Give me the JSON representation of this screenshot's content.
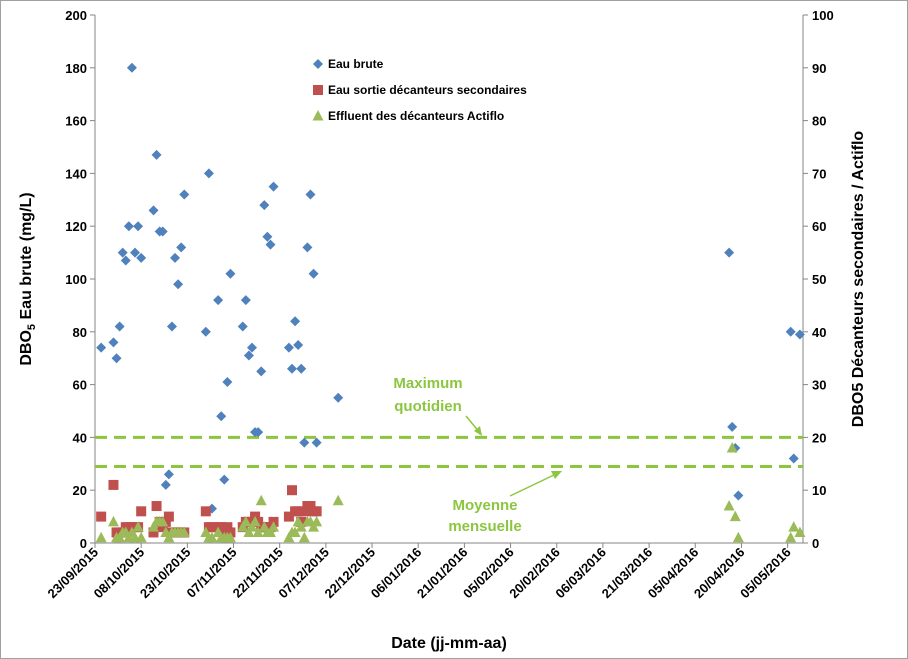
{
  "chart_data": {
    "type": "scatter",
    "title": "",
    "xlabel": "Date (jj-mm-aa)",
    "ylabel_left": [
      "DBO",
      "5",
      " Eau brute (mg/L)"
    ],
    "ylabel_right": "DBO5 Décanteurs secondaires / Actiflo",
    "x_range": [
      "2015-09-23",
      "2016-05-10"
    ],
    "x_tick_labels": [
      "23/09/2015",
      "08/10/2015",
      "23/10/2015",
      "07/11/2015",
      "22/11/2015",
      "07/12/2015",
      "22/12/2015",
      "06/01/2016",
      "21/01/2016",
      "05/02/2016",
      "20/02/2016",
      "06/03/2016",
      "21/03/2016",
      "05/04/2016",
      "20/04/2016",
      "05/05/2016"
    ],
    "x_tick_dates": [
      "2015-09-23",
      "2015-10-08",
      "2015-10-23",
      "2015-11-07",
      "2015-11-22",
      "2015-12-07",
      "2015-12-22",
      "2016-01-06",
      "2016-01-21",
      "2016-02-05",
      "2016-02-20",
      "2016-03-06",
      "2016-03-21",
      "2016-04-05",
      "2016-04-20",
      "2016-05-05"
    ],
    "y_left": {
      "min": 0,
      "max": 200,
      "ticks": [
        0,
        20,
        40,
        60,
        80,
        100,
        120,
        140,
        160,
        180,
        200
      ]
    },
    "y_right": {
      "min": 0,
      "max": 100,
      "ticks": [
        0,
        10,
        20,
        30,
        40,
        50,
        60,
        70,
        80,
        90,
        100
      ]
    },
    "legend_position": "top-center",
    "grid": false,
    "series": [
      {
        "name": "Eau brute",
        "axis": "left",
        "marker": "diamond",
        "color": "#4f81bd",
        "points": [
          [
            "2015-09-25",
            74
          ],
          [
            "2015-09-29",
            76
          ],
          [
            "2015-09-30",
            70
          ],
          [
            "2015-10-01",
            82
          ],
          [
            "2015-10-02",
            110
          ],
          [
            "2015-10-03",
            107
          ],
          [
            "2015-10-04",
            120
          ],
          [
            "2015-10-05",
            180
          ],
          [
            "2015-10-06",
            110
          ],
          [
            "2015-10-07",
            120
          ],
          [
            "2015-10-08",
            108
          ],
          [
            "2015-10-12",
            126
          ],
          [
            "2015-10-13",
            147
          ],
          [
            "2015-10-14",
            118
          ],
          [
            "2015-10-15",
            118
          ],
          [
            "2015-10-16",
            22
          ],
          [
            "2015-10-17",
            26
          ],
          [
            "2015-10-18",
            82
          ],
          [
            "2015-10-19",
            108
          ],
          [
            "2015-10-20",
            98
          ],
          [
            "2015-10-21",
            112
          ],
          [
            "2015-10-22",
            132
          ],
          [
            "2015-10-29",
            80
          ],
          [
            "2015-10-30",
            140
          ],
          [
            "2015-10-31",
            13
          ],
          [
            "2015-11-02",
            92
          ],
          [
            "2015-11-03",
            48
          ],
          [
            "2015-11-04",
            24
          ],
          [
            "2015-11-05",
            61
          ],
          [
            "2015-11-06",
            102
          ],
          [
            "2015-11-10",
            82
          ],
          [
            "2015-11-11",
            92
          ],
          [
            "2015-11-12",
            71
          ],
          [
            "2015-11-13",
            74
          ],
          [
            "2015-11-14",
            42
          ],
          [
            "2015-11-15",
            42
          ],
          [
            "2015-11-16",
            65
          ],
          [
            "2015-11-17",
            128
          ],
          [
            "2015-11-18",
            116
          ],
          [
            "2015-11-19",
            113
          ],
          [
            "2015-11-20",
            135
          ],
          [
            "2015-11-25",
            74
          ],
          [
            "2015-11-26",
            66
          ],
          [
            "2015-11-27",
            84
          ],
          [
            "2015-11-28",
            75
          ],
          [
            "2015-11-29",
            66
          ],
          [
            "2015-11-30",
            38
          ],
          [
            "2015-12-01",
            112
          ],
          [
            "2015-12-02",
            132
          ],
          [
            "2015-12-03",
            102
          ],
          [
            "2015-12-04",
            38
          ],
          [
            "2015-12-11",
            55
          ],
          [
            "2016-04-16",
            110
          ],
          [
            "2016-04-17",
            44
          ],
          [
            "2016-04-18",
            36
          ],
          [
            "2016-04-19",
            18
          ],
          [
            "2016-05-06",
            80
          ],
          [
            "2016-05-07",
            32
          ],
          [
            "2016-05-09",
            79
          ]
        ]
      },
      {
        "name": "Eau sortie décanteurs secondaires",
        "axis": "right",
        "marker": "square",
        "color": "#c0504d",
        "points": [
          [
            "2015-09-25",
            5
          ],
          [
            "2015-09-29",
            11
          ],
          [
            "2015-09-30",
            2
          ],
          [
            "2015-10-01",
            2
          ],
          [
            "2015-10-02",
            2
          ],
          [
            "2015-10-03",
            3
          ],
          [
            "2015-10-04",
            3
          ],
          [
            "2015-10-05",
            3
          ],
          [
            "2015-10-06",
            3
          ],
          [
            "2015-10-07",
            3
          ],
          [
            "2015-10-08",
            6
          ],
          [
            "2015-10-12",
            2
          ],
          [
            "2015-10-13",
            7
          ],
          [
            "2015-10-14",
            4
          ],
          [
            "2015-10-15",
            3
          ],
          [
            "2015-10-16",
            4
          ],
          [
            "2015-10-17",
            5
          ],
          [
            "2015-10-18",
            2
          ],
          [
            "2015-10-19",
            2
          ],
          [
            "2015-10-20",
            2
          ],
          [
            "2015-10-21",
            2
          ],
          [
            "2015-10-22",
            2
          ],
          [
            "2015-10-29",
            6
          ],
          [
            "2015-10-30",
            3
          ],
          [
            "2015-10-31",
            3
          ],
          [
            "2015-11-02",
            3
          ],
          [
            "2015-11-03",
            3
          ],
          [
            "2015-11-04",
            2
          ],
          [
            "2015-11-05",
            3
          ],
          [
            "2015-11-06",
            2
          ],
          [
            "2015-11-10",
            3
          ],
          [
            "2015-11-11",
            4
          ],
          [
            "2015-11-12",
            4
          ],
          [
            "2015-11-13",
            4
          ],
          [
            "2015-11-14",
            5
          ],
          [
            "2015-11-15",
            4
          ],
          [
            "2015-11-16",
            3
          ],
          [
            "2015-11-17",
            3
          ],
          [
            "2015-11-18",
            3
          ],
          [
            "2015-11-19",
            3
          ],
          [
            "2015-11-20",
            4
          ],
          [
            "2015-11-25",
            5
          ],
          [
            "2015-11-26",
            10
          ],
          [
            "2015-11-27",
            6
          ],
          [
            "2015-11-28",
            6
          ],
          [
            "2015-11-29",
            4
          ],
          [
            "2015-11-30",
            6
          ],
          [
            "2015-12-01",
            7
          ],
          [
            "2015-12-02",
            7
          ],
          [
            "2015-12-03",
            6
          ],
          [
            "2015-12-04",
            6
          ]
        ]
      },
      {
        "name": "Effluent des décanteurs Actiflo",
        "axis": "right",
        "marker": "triangle",
        "color": "#9bbb59",
        "points": [
          [
            "2015-09-25",
            1
          ],
          [
            "2015-09-29",
            4
          ],
          [
            "2015-09-30",
            1
          ],
          [
            "2015-10-01",
            1
          ],
          [
            "2015-10-02",
            2
          ],
          [
            "2015-10-03",
            2
          ],
          [
            "2015-10-04",
            1
          ],
          [
            "2015-10-05",
            2
          ],
          [
            "2015-10-06",
            1
          ],
          [
            "2015-10-07",
            3
          ],
          [
            "2015-10-08",
            1
          ],
          [
            "2015-10-12",
            3
          ],
          [
            "2015-10-13",
            4
          ],
          [
            "2015-10-14",
            4
          ],
          [
            "2015-10-15",
            4
          ],
          [
            "2015-10-16",
            2
          ],
          [
            "2015-10-17",
            1
          ],
          [
            "2015-10-18",
            2
          ],
          [
            "2015-10-19",
            2
          ],
          [
            "2015-10-20",
            2
          ],
          [
            "2015-10-21",
            2
          ],
          [
            "2015-10-22",
            2
          ],
          [
            "2015-10-29",
            2
          ],
          [
            "2015-10-30",
            1
          ],
          [
            "2015-10-31",
            1
          ],
          [
            "2015-11-02",
            2
          ],
          [
            "2015-11-03",
            1
          ],
          [
            "2015-11-04",
            1
          ],
          [
            "2015-11-05",
            1
          ],
          [
            "2015-11-06",
            1
          ],
          [
            "2015-11-10",
            3
          ],
          [
            "2015-11-11",
            4
          ],
          [
            "2015-11-12",
            2
          ],
          [
            "2015-11-13",
            3
          ],
          [
            "2015-11-14",
            4
          ],
          [
            "2015-11-15",
            2
          ],
          [
            "2015-11-16",
            8
          ],
          [
            "2015-11-17",
            3
          ],
          [
            "2015-11-18",
            2
          ],
          [
            "2015-11-19",
            2
          ],
          [
            "2015-11-20",
            3
          ],
          [
            "2015-11-25",
            1
          ],
          [
            "2015-11-26",
            2
          ],
          [
            "2015-11-27",
            2
          ],
          [
            "2015-11-28",
            4
          ],
          [
            "2015-11-29",
            3
          ],
          [
            "2015-11-30",
            1
          ],
          [
            "2015-12-01",
            4
          ],
          [
            "2015-12-02",
            4
          ],
          [
            "2015-12-03",
            3
          ],
          [
            "2015-12-04",
            4
          ],
          [
            "2015-12-11",
            8
          ],
          [
            "2016-04-16",
            7
          ],
          [
            "2016-04-17",
            18
          ],
          [
            "2016-04-18",
            5
          ],
          [
            "2016-04-19",
            1
          ],
          [
            "2016-05-06",
            1
          ],
          [
            "2016-05-07",
            3
          ],
          [
            "2016-05-09",
            2
          ]
        ]
      }
    ],
    "reference_lines": [
      {
        "label": "Maximum quotidien",
        "axis": "left",
        "value": 40,
        "color": "#8cc63f",
        "style": "dashed"
      },
      {
        "label": "Moyenne mensuelle",
        "axis": "left",
        "value": 29,
        "color": "#8cc63f",
        "style": "dashed"
      }
    ],
    "annotations": [
      {
        "lines": [
          "Maximum",
          "quotidien"
        ],
        "color": "#8cc63f"
      },
      {
        "lines": [
          "Moyenne",
          "mensuelle"
        ],
        "color": "#8cc63f"
      }
    ]
  }
}
